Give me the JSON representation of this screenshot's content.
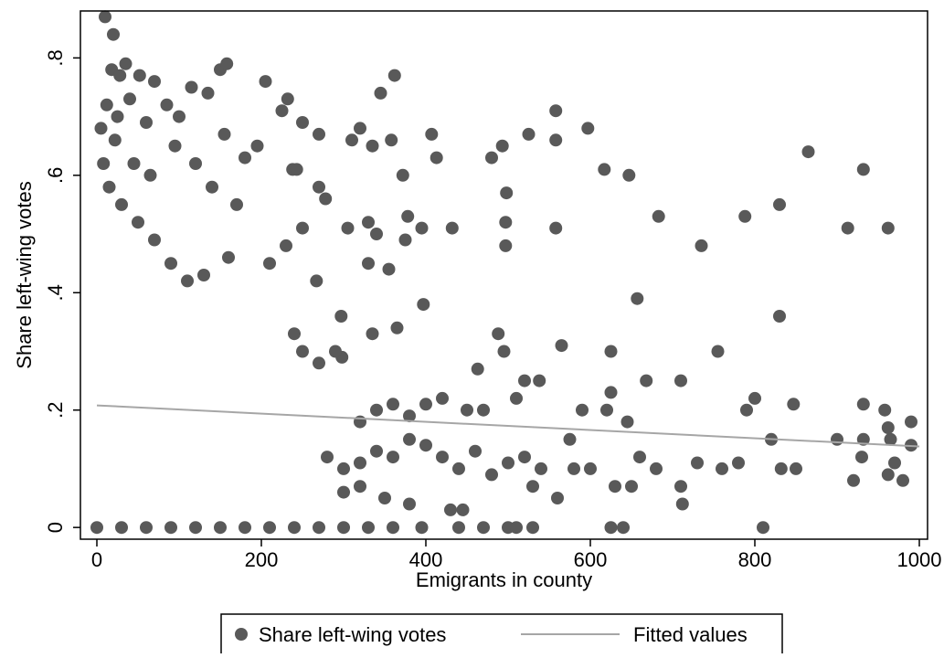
{
  "chart_data": {
    "type": "scatter",
    "xlabel": "Emigrants in county",
    "ylabel": "Share left-wing votes",
    "xlim": [
      -20,
      1010
    ],
    "ylim": [
      -0.02,
      0.88
    ],
    "xticks": [
      0,
      200,
      400,
      600,
      800,
      1000
    ],
    "xtick_labels": [
      "0",
      "200",
      "400",
      "600",
      "800",
      "1000"
    ],
    "yticks": [
      0,
      0.2,
      0.4,
      0.6,
      0.8
    ],
    "ytick_labels": [
      "0",
      ".2",
      ".4",
      ".6",
      ".8"
    ],
    "grid": false,
    "legend_position": "bottom",
    "colors": {
      "points": "#595959",
      "fit_line": "#a6a6a6",
      "frame": "#000000"
    },
    "series": [
      {
        "name": "Share left-wing votes",
        "kind": "scatter",
        "points": [
          [
            10,
            0.87
          ],
          [
            20,
            0.84
          ],
          [
            18,
            0.78
          ],
          [
            28,
            0.77
          ],
          [
            35,
            0.79
          ],
          [
            52,
            0.77
          ],
          [
            70,
            0.76
          ],
          [
            12,
            0.72
          ],
          [
            25,
            0.7
          ],
          [
            40,
            0.73
          ],
          [
            60,
            0.69
          ],
          [
            85,
            0.72
          ],
          [
            100,
            0.7
          ],
          [
            115,
            0.75
          ],
          [
            135,
            0.74
          ],
          [
            150,
            0.78
          ],
          [
            158,
            0.79
          ],
          [
            205,
            0.76
          ],
          [
            225,
            0.71
          ],
          [
            232,
            0.73
          ],
          [
            155,
            0.67
          ],
          [
            180,
            0.63
          ],
          [
            250,
            0.69
          ],
          [
            270,
            0.67
          ],
          [
            310,
            0.66
          ],
          [
            320,
            0.68
          ],
          [
            335,
            0.65
          ],
          [
            345,
            0.74
          ],
          [
            362,
            0.77
          ],
          [
            358,
            0.66
          ],
          [
            372,
            0.6
          ],
          [
            407,
            0.67
          ],
          [
            413,
            0.63
          ],
          [
            480,
            0.63
          ],
          [
            493,
            0.65
          ],
          [
            525,
            0.67
          ],
          [
            558,
            0.71
          ],
          [
            558,
            0.66
          ],
          [
            597,
            0.68
          ],
          [
            617,
            0.61
          ],
          [
            647,
            0.6
          ],
          [
            865,
            0.64
          ],
          [
            932,
            0.61
          ],
          [
            22,
            0.66
          ],
          [
            45,
            0.62
          ],
          [
            65,
            0.6
          ],
          [
            95,
            0.65
          ],
          [
            120,
            0.62
          ],
          [
            140,
            0.58
          ],
          [
            170,
            0.55
          ],
          [
            195,
            0.65
          ],
          [
            238,
            0.61
          ],
          [
            243,
            0.61
          ],
          [
            270,
            0.58
          ],
          [
            278,
            0.56
          ],
          [
            297,
            0.36
          ],
          [
            305,
            0.51
          ],
          [
            330,
            0.52
          ],
          [
            340,
            0.5
          ],
          [
            375,
            0.49
          ],
          [
            378,
            0.53
          ],
          [
            395,
            0.51
          ],
          [
            432,
            0.51
          ],
          [
            497,
            0.52
          ],
          [
            498,
            0.57
          ],
          [
            558,
            0.51
          ],
          [
            497,
            0.48
          ],
          [
            683,
            0.53
          ],
          [
            735,
            0.48
          ],
          [
            788,
            0.53
          ],
          [
            830,
            0.55
          ],
          [
            913,
            0.51
          ],
          [
            962,
            0.51
          ],
          [
            657,
            0.39
          ],
          [
            397,
            0.38
          ],
          [
            355,
            0.44
          ],
          [
            330,
            0.45
          ],
          [
            267,
            0.42
          ],
          [
            250,
            0.51
          ],
          [
            230,
            0.48
          ],
          [
            210,
            0.45
          ],
          [
            160,
            0.46
          ],
          [
            130,
            0.43
          ],
          [
            110,
            0.42
          ],
          [
            90,
            0.45
          ],
          [
            70,
            0.49
          ],
          [
            50,
            0.52
          ],
          [
            30,
            0.55
          ],
          [
            15,
            0.58
          ],
          [
            8,
            0.62
          ],
          [
            5,
            0.68
          ],
          [
            830,
            0.36
          ],
          [
            365,
            0.34
          ],
          [
            335,
            0.33
          ],
          [
            565,
            0.31
          ],
          [
            625,
            0.3
          ],
          [
            755,
            0.3
          ],
          [
            488,
            0.33
          ],
          [
            495,
            0.3
          ],
          [
            463,
            0.27
          ],
          [
            298,
            0.29
          ],
          [
            270,
            0.28
          ],
          [
            290,
            0.3
          ],
          [
            250,
            0.3
          ],
          [
            240,
            0.33
          ],
          [
            520,
            0.25
          ],
          [
            538,
            0.25
          ],
          [
            645,
            0.18
          ],
          [
            668,
            0.25
          ],
          [
            710,
            0.25
          ],
          [
            625,
            0.23
          ],
          [
            590,
            0.2
          ],
          [
            620,
            0.2
          ],
          [
            790,
            0.2
          ],
          [
            800,
            0.22
          ],
          [
            847,
            0.21
          ],
          [
            932,
            0.21
          ],
          [
            958,
            0.2
          ],
          [
            990,
            0.18
          ],
          [
            962,
            0.17
          ],
          [
            965,
            0.15
          ],
          [
            932,
            0.15
          ],
          [
            900,
            0.15
          ],
          [
            930,
            0.12
          ],
          [
            920,
            0.08
          ],
          [
            970,
            0.11
          ],
          [
            980,
            0.08
          ],
          [
            962,
            0.09
          ],
          [
            990,
            0.14
          ],
          [
            832,
            0.1
          ],
          [
            850,
            0.1
          ],
          [
            820,
            0.15
          ],
          [
            780,
            0.11
          ],
          [
            760,
            0.1
          ],
          [
            730,
            0.11
          ],
          [
            710,
            0.07
          ],
          [
            712,
            0.04
          ],
          [
            680,
            0.1
          ],
          [
            660,
            0.12
          ],
          [
            650,
            0.07
          ],
          [
            630,
            0.07
          ],
          [
            600,
            0.1
          ],
          [
            580,
            0.1
          ],
          [
            560,
            0.05
          ],
          [
            540,
            0.1
          ],
          [
            520,
            0.12
          ],
          [
            500,
            0.11
          ],
          [
            480,
            0.09
          ],
          [
            460,
            0.13
          ],
          [
            440,
            0.1
          ],
          [
            420,
            0.12
          ],
          [
            400,
            0.14
          ],
          [
            380,
            0.15
          ],
          [
            360,
            0.12
          ],
          [
            340,
            0.13
          ],
          [
            320,
            0.11
          ],
          [
            300,
            0.1
          ],
          [
            280,
            0.12
          ],
          [
            430,
            0.03
          ],
          [
            445,
            0.03
          ],
          [
            380,
            0.04
          ],
          [
            300,
            0.06
          ],
          [
            320,
            0.07
          ],
          [
            350,
            0.05
          ],
          [
            530,
            0.07
          ],
          [
            575,
            0.15
          ],
          [
            450,
            0.2
          ],
          [
            470,
            0.2
          ],
          [
            510,
            0.22
          ],
          [
            420,
            0.22
          ],
          [
            400,
            0.21
          ],
          [
            380,
            0.19
          ],
          [
            360,
            0.21
          ],
          [
            340,
            0.2
          ],
          [
            320,
            0.18
          ],
          [
            0,
            0.0
          ],
          [
            30,
            0.0
          ],
          [
            60,
            0.0
          ],
          [
            90,
            0.0
          ],
          [
            120,
            0.0
          ],
          [
            150,
            0.0
          ],
          [
            180,
            0.0
          ],
          [
            210,
            0.0
          ],
          [
            240,
            0.0
          ],
          [
            270,
            0.0
          ],
          [
            300,
            0.0
          ],
          [
            330,
            0.0
          ],
          [
            360,
            0.0
          ],
          [
            395,
            0.0
          ],
          [
            440,
            0.0
          ],
          [
            470,
            0.0
          ],
          [
            500,
            0.0
          ],
          [
            510,
            0.0
          ],
          [
            530,
            0.0
          ],
          [
            625,
            0.0
          ],
          [
            640,
            0.0
          ],
          [
            810,
            0.0
          ]
        ]
      },
      {
        "name": "Fitted values",
        "kind": "line",
        "x": [
          0,
          1000
        ],
        "y": [
          0.208,
          0.138
        ]
      }
    ]
  },
  "legend": {
    "items": [
      "Share left-wing votes",
      "Fitted values"
    ]
  }
}
